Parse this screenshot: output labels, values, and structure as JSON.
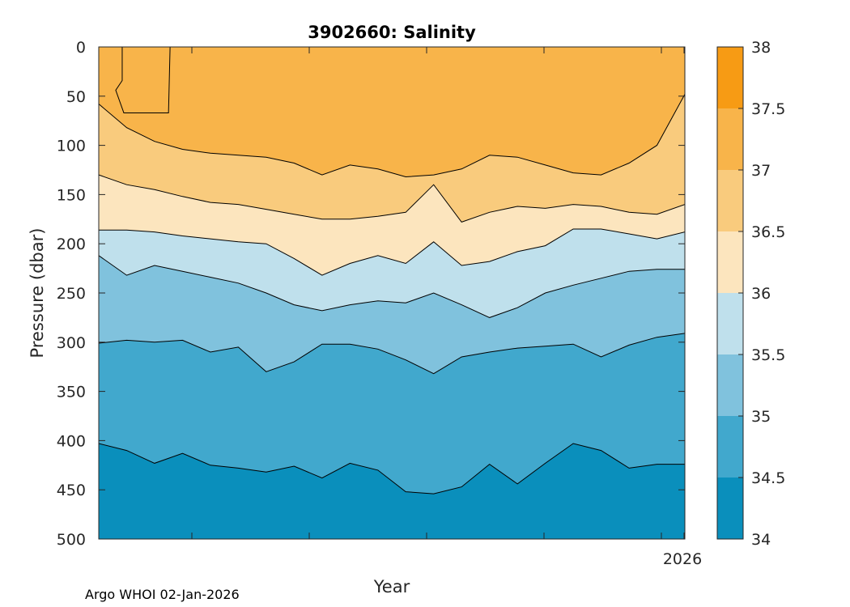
{
  "chart_data": {
    "type": "contour",
    "title": "3902660:  Salinity",
    "xlabel": "Year",
    "ylabel": "Pressure (dbar)",
    "x_tick_labels": [
      "",
      "",
      "",
      "",
      "",
      "2026"
    ],
    "ylim": [
      0,
      500
    ],
    "y_ticks": [
      0,
      50,
      100,
      150,
      200,
      250,
      300,
      350,
      400,
      450,
      500
    ],
    "y_reversed": true,
    "colorbar": {
      "levels": [
        34,
        34.5,
        35,
        35.5,
        36,
        36.5,
        37,
        37.5,
        38
      ],
      "tick_labels": [
        "34",
        "34.5",
        "35",
        "35.5",
        "36",
        "36.5",
        "37",
        "37.5",
        "38"
      ],
      "colors": [
        "#0a8fbc",
        "#41a8cd",
        "#80c2dd",
        "#bfe0ec",
        "#fce5be",
        "#f9cb7d",
        "#f8b44a",
        "#f79b14"
      ]
    },
    "profile_fractions": [
      0,
      0.0476,
      0.0952,
      0.1429,
      0.1905,
      0.2381,
      0.2857,
      0.3333,
      0.381,
      0.4286,
      0.4762,
      0.5238,
      0.5714,
      0.619,
      0.6667,
      0.7143,
      0.7619,
      0.8095,
      0.8571,
      0.9048,
      0.9524,
      1
    ],
    "isohalines": [
      {
        "value": 34.5,
        "pressure": [
          403,
          410,
          423,
          413,
          425,
          428,
          432,
          426,
          438,
          423,
          430,
          452,
          454,
          447,
          424,
          444,
          423,
          403,
          410,
          428,
          424,
          424
        ]
      },
      {
        "value": 35.0,
        "pressure": [
          301,
          298,
          300,
          298,
          310,
          305,
          330,
          320,
          302,
          302,
          307,
          318,
          332,
          315,
          310,
          306,
          304,
          302,
          315,
          303,
          295,
          291
        ]
      },
      {
        "value": 35.5,
        "pressure": [
          212,
          232,
          222,
          228,
          234,
          240,
          250,
          262,
          268,
          262,
          258,
          260,
          250,
          262,
          275,
          265,
          250,
          242,
          235,
          228,
          226,
          226
        ]
      },
      {
        "value": 36.0,
        "pressure": [
          186,
          186,
          188,
          192,
          195,
          198,
          200,
          215,
          232,
          220,
          212,
          220,
          198,
          222,
          218,
          208,
          202,
          185,
          185,
          190,
          195,
          188
        ]
      },
      {
        "value": 36.5,
        "pressure": [
          130,
          140,
          145,
          152,
          158,
          160,
          165,
          170,
          175,
          175,
          172,
          168,
          140,
          178,
          168,
          162,
          164,
          160,
          162,
          168,
          170,
          160
        ]
      },
      {
        "value": 37.0,
        "pressure": [
          58,
          82,
          96,
          104,
          108,
          110,
          112,
          118,
          130,
          120,
          124,
          132,
          130,
          124,
          110,
          112,
          120,
          128,
          130,
          118,
          100,
          48
        ]
      }
    ],
    "high_salinity_patch": {
      "value": 37.0,
      "x_fraction_range": [
        0.04,
        0.119
      ],
      "pressure_range": [
        0,
        67
      ]
    }
  },
  "credit": "Argo WHOI 02-Jan-2026"
}
